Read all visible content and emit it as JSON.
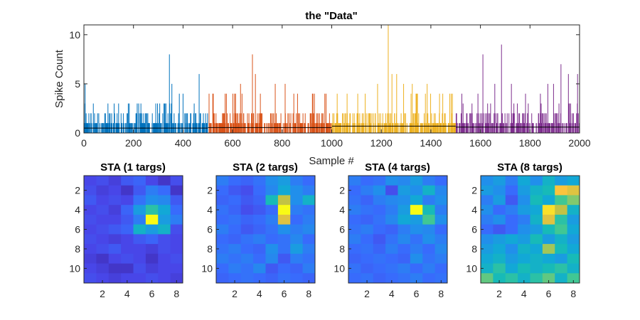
{
  "chart_data": [
    {
      "type": "bar",
      "title": "the \"Data\"",
      "xlabel": "Sample #",
      "ylabel": "Spike Count",
      "xlim": [
        0,
        2000
      ],
      "ylim": [
        0,
        11
      ],
      "xticks": [
        "0",
        "200",
        "400",
        "600",
        "800",
        "1000",
        "1200",
        "1400",
        "1600",
        "1800",
        "2000"
      ],
      "yticks": [
        "0",
        "5",
        "10"
      ],
      "series": [
        {
          "color": "#0072BD",
          "x_range": [
            1,
            500
          ],
          "baseline_mean": 0.5,
          "typical_max": 2,
          "peaks": [
            {
              "x": 5,
              "y": 5
            },
            {
              "x": 55,
              "y": 2
            },
            {
              "x": 140,
              "y": 3
            },
            {
              "x": 215,
              "y": 3
            },
            {
              "x": 290,
              "y": 3
            },
            {
              "x": 330,
              "y": 3
            },
            {
              "x": 345,
              "y": 8
            },
            {
              "x": 355,
              "y": 5
            },
            {
              "x": 385,
              "y": 4
            },
            {
              "x": 400,
              "y": 4
            },
            {
              "x": 445,
              "y": 3
            },
            {
              "x": 465,
              "y": 6
            }
          ]
        },
        {
          "color": "#D95319",
          "x_range": [
            501,
            1000
          ],
          "baseline_mean": 0.6,
          "typical_max": 3,
          "peaks": [
            {
              "x": 505,
              "y": 4
            },
            {
              "x": 520,
              "y": 4
            },
            {
              "x": 575,
              "y": 4
            },
            {
              "x": 612,
              "y": 4
            },
            {
              "x": 632,
              "y": 5
            },
            {
              "x": 680,
              "y": 8
            },
            {
              "x": 692,
              "y": 6
            },
            {
              "x": 712,
              "y": 4
            },
            {
              "x": 772,
              "y": 5
            },
            {
              "x": 812,
              "y": 5
            },
            {
              "x": 862,
              "y": 4
            },
            {
              "x": 930,
              "y": 4
            },
            {
              "x": 972,
              "y": 4
            }
          ]
        },
        {
          "color": "#EDB120",
          "x_range": [
            1001,
            1500
          ],
          "baseline_mean": 0.7,
          "typical_max": 3,
          "peaks": [
            {
              "x": 1022,
              "y": 4
            },
            {
              "x": 1062,
              "y": 4
            },
            {
              "x": 1105,
              "y": 4
            },
            {
              "x": 1135,
              "y": 4
            },
            {
              "x": 1185,
              "y": 5
            },
            {
              "x": 1228,
              "y": 11
            },
            {
              "x": 1243,
              "y": 6
            },
            {
              "x": 1262,
              "y": 6
            },
            {
              "x": 1290,
              "y": 5
            },
            {
              "x": 1325,
              "y": 5
            },
            {
              "x": 1385,
              "y": 5
            },
            {
              "x": 1435,
              "y": 4
            },
            {
              "x": 1482,
              "y": 4
            }
          ]
        },
        {
          "color": "#7E2F8E",
          "x_range": [
            1501,
            2000
          ],
          "baseline_mean": 0.6,
          "typical_max": 2,
          "peaks": [
            {
              "x": 1525,
              "y": 4
            },
            {
              "x": 1590,
              "y": 4
            },
            {
              "x": 1610,
              "y": 8
            },
            {
              "x": 1658,
              "y": 5
            },
            {
              "x": 1685,
              "y": 9
            },
            {
              "x": 1725,
              "y": 5
            },
            {
              "x": 1782,
              "y": 4
            },
            {
              "x": 1842,
              "y": 4
            },
            {
              "x": 1872,
              "y": 5
            },
            {
              "x": 1895,
              "y": 5
            },
            {
              "x": 1925,
              "y": 7
            },
            {
              "x": 1955,
              "y": 6
            },
            {
              "x": 1992,
              "y": 6
            }
          ]
        }
      ],
      "mean_line": {
        "color": "#000000",
        "segments": [
          {
            "x": [
              1,
              500
            ],
            "y": 0.5
          },
          {
            "x": [
              501,
              1000
            ],
            "y": 0.55
          },
          {
            "x": [
              1001,
              1500
            ],
            "y": 0.7
          },
          {
            "x": [
              1501,
              2000
            ],
            "y": 0.6
          }
        ]
      }
    },
    {
      "type": "heatmap",
      "title": "STA (1 targs)",
      "colormap": "parula",
      "clim": [
        0,
        1
      ],
      "xticks": [
        "2",
        "4",
        "6",
        "8"
      ],
      "yticks": [
        "2",
        "4",
        "6",
        "8",
        "10"
      ],
      "values": [
        [
          0.1,
          0.12,
          0.08,
          0.15,
          0.18,
          0.1,
          0.05,
          0.12
        ],
        [
          0.12,
          0.08,
          0.1,
          0.05,
          0.15,
          0.25,
          0.2,
          0.05
        ],
        [
          0.15,
          0.1,
          0.12,
          0.1,
          0.22,
          0.3,
          0.28,
          0.15
        ],
        [
          0.1,
          0.12,
          0.08,
          0.18,
          0.35,
          0.55,
          0.4,
          0.2
        ],
        [
          0.12,
          0.1,
          0.1,
          0.15,
          0.25,
          1.0,
          0.35,
          0.25
        ],
        [
          0.1,
          0.12,
          0.15,
          0.18,
          0.45,
          0.35,
          0.45,
          0.12
        ],
        [
          0.12,
          0.1,
          0.08,
          0.1,
          0.15,
          0.18,
          0.12,
          0.1
        ],
        [
          0.1,
          0.12,
          0.15,
          0.1,
          0.1,
          0.08,
          0.12,
          0.1
        ],
        [
          0.08,
          0.05,
          0.1,
          0.12,
          0.1,
          0.05,
          0.1,
          0.12
        ],
        [
          0.1,
          0.08,
          0.05,
          0.05,
          0.12,
          0.08,
          0.1,
          0.1
        ],
        [
          0.12,
          0.1,
          0.08,
          0.1,
          0.1,
          0.12,
          0.1,
          0.08
        ]
      ]
    },
    {
      "type": "heatmap",
      "title": "STA (2 targs)",
      "colormap": "parula",
      "clim": [
        0,
        1
      ],
      "xticks": [
        "2",
        "4",
        "6",
        "8"
      ],
      "yticks": [
        "2",
        "4",
        "6",
        "8",
        "10"
      ],
      "values": [
        [
          0.25,
          0.2,
          0.18,
          0.22,
          0.3,
          0.35,
          0.25,
          0.2
        ],
        [
          0.2,
          0.15,
          0.12,
          0.2,
          0.28,
          0.4,
          0.3,
          0.25
        ],
        [
          0.18,
          0.2,
          0.15,
          0.18,
          0.5,
          0.8,
          0.3,
          0.45
        ],
        [
          0.22,
          0.18,
          0.12,
          0.15,
          0.2,
          1.0,
          0.25,
          0.22
        ],
        [
          0.2,
          0.22,
          0.18,
          0.2,
          0.25,
          0.85,
          0.2,
          0.25
        ],
        [
          0.25,
          0.2,
          0.15,
          0.18,
          0.22,
          0.3,
          0.25,
          0.28
        ],
        [
          0.2,
          0.18,
          0.22,
          0.25,
          0.2,
          0.22,
          0.28,
          0.2
        ],
        [
          0.22,
          0.25,
          0.2,
          0.18,
          0.3,
          0.22,
          0.35,
          0.25
        ],
        [
          0.25,
          0.22,
          0.25,
          0.2,
          0.28,
          0.15,
          0.25,
          0.22
        ],
        [
          0.2,
          0.25,
          0.22,
          0.28,
          0.15,
          0.2,
          0.18,
          0.25
        ],
        [
          0.18,
          0.2,
          0.22,
          0.2,
          0.18,
          0.22,
          0.2,
          0.18
        ]
      ]
    },
    {
      "type": "heatmap",
      "title": "STA (4 targs)",
      "colormap": "parula",
      "clim": [
        0,
        1
      ],
      "xticks": [
        "2",
        "4",
        "6",
        "8"
      ],
      "yticks": [
        "2",
        "4",
        "6",
        "8",
        "10"
      ],
      "values": [
        [
          0.25,
          0.2,
          0.22,
          0.3,
          0.28,
          0.35,
          0.25,
          0.2
        ],
        [
          0.2,
          0.25,
          0.3,
          0.12,
          0.35,
          0.3,
          0.45,
          0.28
        ],
        [
          0.22,
          0.18,
          0.25,
          0.28,
          0.3,
          0.4,
          0.25,
          0.3
        ],
        [
          0.25,
          0.22,
          0.2,
          0.25,
          0.35,
          1.0,
          0.5,
          0.25
        ],
        [
          0.2,
          0.18,
          0.22,
          0.28,
          0.4,
          0.35,
          0.6,
          0.3
        ],
        [
          0.22,
          0.25,
          0.2,
          0.18,
          0.25,
          0.3,
          0.28,
          0.2
        ],
        [
          0.25,
          0.2,
          0.15,
          0.22,
          0.28,
          0.22,
          0.3,
          0.25
        ],
        [
          0.2,
          0.22,
          0.18,
          0.25,
          0.2,
          0.25,
          0.2,
          0.28
        ],
        [
          0.18,
          0.2,
          0.22,
          0.2,
          0.18,
          0.3,
          0.22,
          0.25
        ],
        [
          0.22,
          0.18,
          0.2,
          0.22,
          0.25,
          0.2,
          0.25,
          0.2
        ],
        [
          0.2,
          0.22,
          0.18,
          0.2,
          0.22,
          0.25,
          0.2,
          0.22
        ]
      ]
    },
    {
      "type": "heatmap",
      "title": "STA (8 targs)",
      "colormap": "parula",
      "clim": [
        0,
        1
      ],
      "xticks": [
        "2",
        "4",
        "6",
        "8"
      ],
      "yticks": [
        "2",
        "4",
        "6",
        "8",
        "10"
      ],
      "values": [
        [
          0.3,
          0.35,
          0.25,
          0.4,
          0.3,
          0.45,
          0.35,
          0.4
        ],
        [
          0.35,
          0.3,
          0.2,
          0.35,
          0.45,
          0.5,
          0.9,
          0.85
        ],
        [
          0.25,
          0.35,
          0.15,
          0.3,
          0.5,
          0.4,
          0.6,
          0.7
        ],
        [
          0.3,
          0.2,
          0.25,
          0.35,
          0.4,
          0.95,
          0.8,
          0.45
        ],
        [
          0.25,
          0.3,
          0.2,
          0.25,
          0.45,
          0.85,
          0.55,
          0.35
        ],
        [
          0.2,
          0.15,
          0.2,
          0.3,
          0.35,
          0.5,
          0.6,
          0.4
        ],
        [
          0.3,
          0.35,
          0.4,
          0.35,
          0.5,
          0.35,
          0.45,
          0.35
        ],
        [
          0.35,
          0.4,
          0.3,
          0.45,
          0.4,
          0.75,
          0.5,
          0.4
        ],
        [
          0.4,
          0.45,
          0.35,
          0.4,
          0.45,
          0.4,
          0.35,
          0.5
        ],
        [
          0.45,
          0.55,
          0.4,
          0.5,
          0.45,
          0.5,
          0.55,
          0.45
        ],
        [
          0.65,
          0.5,
          0.55,
          0.45,
          0.55,
          0.65,
          0.45,
          0.6
        ]
      ]
    }
  ]
}
